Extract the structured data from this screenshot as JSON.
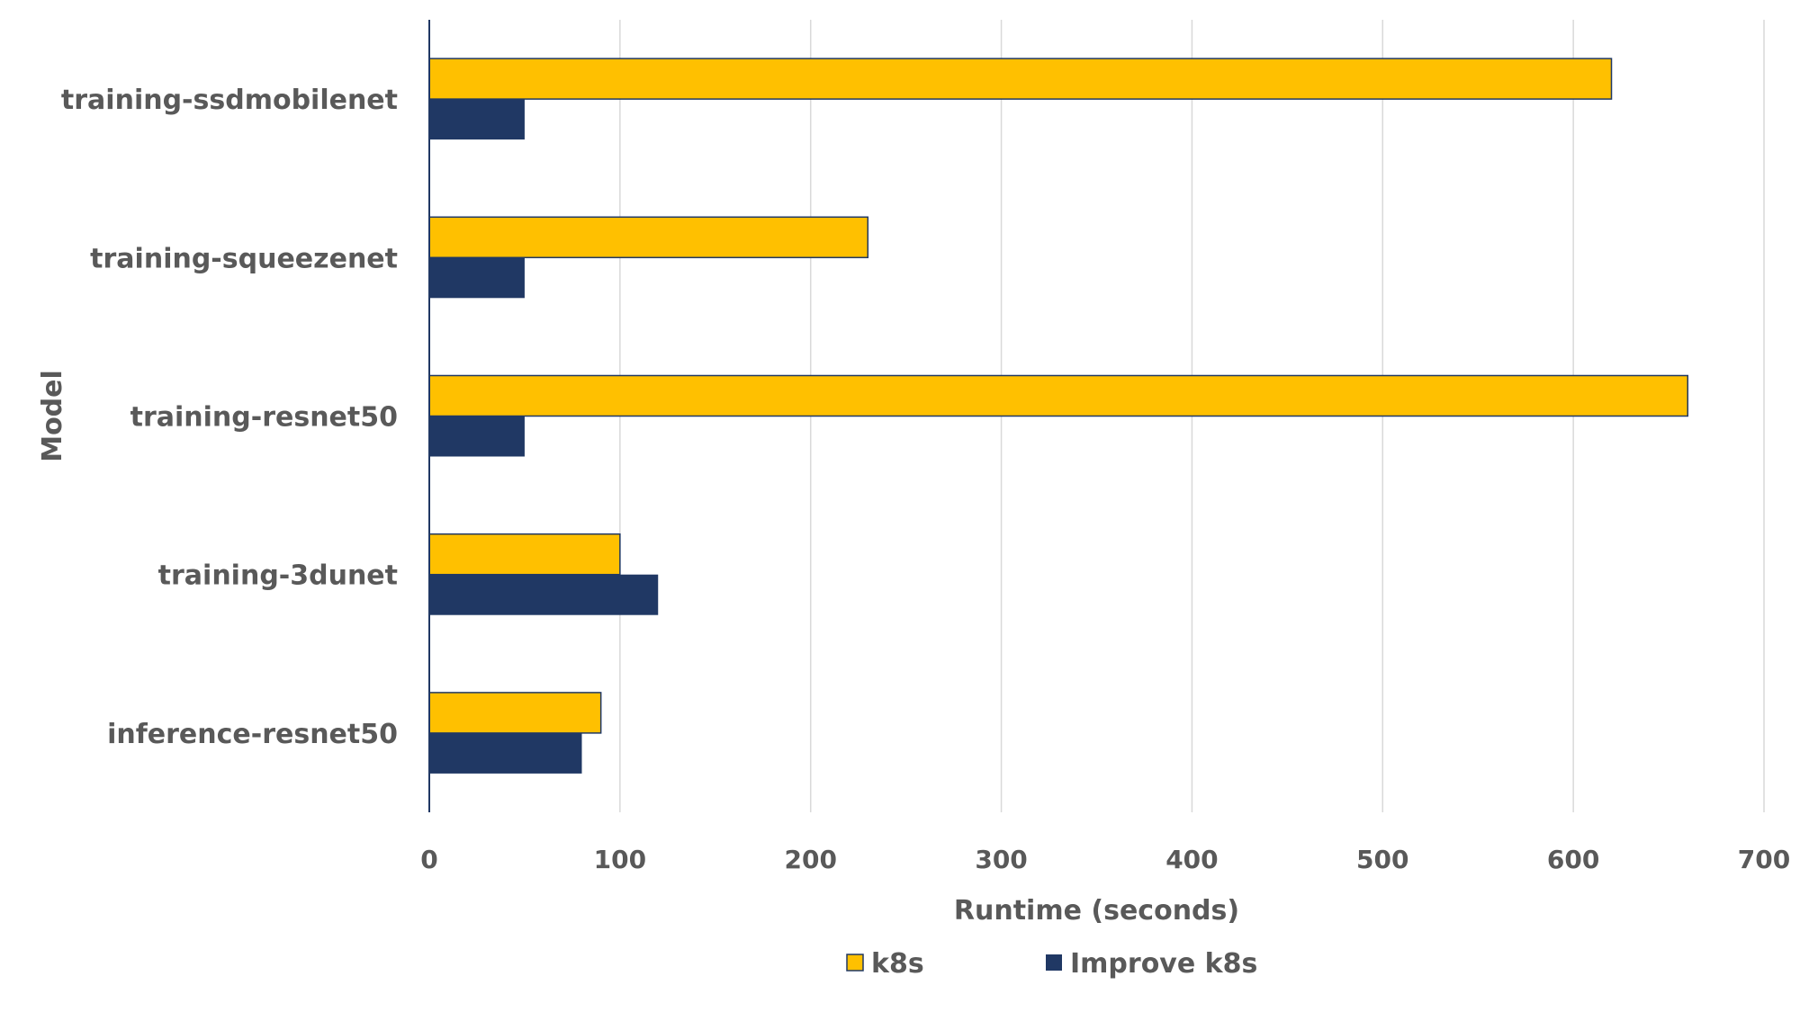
{
  "chart_data": {
    "type": "bar",
    "orientation": "horizontal",
    "categories": [
      "training-ssdmobilenet",
      "training-squeezenet",
      "training-resnet50",
      "training-3dunet",
      "inference-resnet50"
    ],
    "series": [
      {
        "name": "k8s",
        "color": "#FFC000",
        "values": [
          620,
          230,
          660,
          100,
          90
        ]
      },
      {
        "name": "Improve k8s",
        "color": "#203864",
        "values": [
          50,
          50,
          50,
          120,
          80
        ]
      }
    ],
    "title": "",
    "xlabel": "Runtime (seconds)",
    "ylabel": "Model",
    "xlim": [
      0,
      700
    ],
    "xticks": [
      0,
      100,
      200,
      300,
      400,
      500,
      600,
      700
    ],
    "grid": true,
    "legend": "bottom"
  }
}
